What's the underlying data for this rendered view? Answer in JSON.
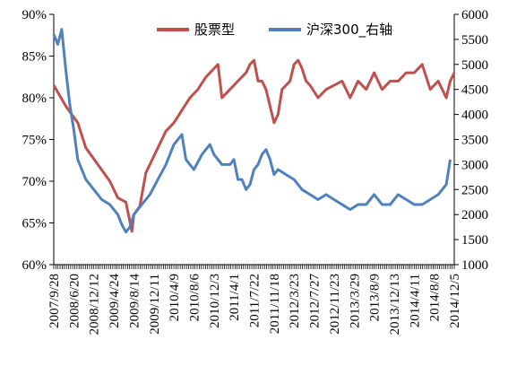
{
  "chart_data": {
    "type": "line",
    "title": "",
    "xlabel": "",
    "ylabel": "",
    "x_ticks": [
      "2007/9/28",
      "2008/6/20",
      "2008/12/12",
      "2009/4/24",
      "2009/8/14",
      "2009/12/11",
      "2010/4/9",
      "2010/8/6",
      "2010/12/3",
      "2011/4/1",
      "2011/7/22",
      "2011/11/18",
      "2012/3/23",
      "2012/7/27",
      "2012/11/23",
      "2013/3/29",
      "2013/8/9",
      "2013/12/13",
      "2014/4/11",
      "2014/8/8",
      "2014/12/5"
    ],
    "y_left_ticks": [
      "60%",
      "65%",
      "70%",
      "75%",
      "80%",
      "85%",
      "90%"
    ],
    "y_left_range": [
      60,
      90
    ],
    "y_right_ticks": [
      "1000",
      "1500",
      "2000",
      "2500",
      "3000",
      "3500",
      "4000",
      "4500",
      "5000",
      "5500",
      "6000"
    ],
    "y_right_range": [
      1000,
      6000
    ],
    "legend_position": "top-center",
    "grid": false,
    "series": [
      {
        "name": "股票型",
        "axis": "left",
        "color": "#c0504d",
        "values": [
          [
            0,
            81.5
          ],
          [
            3,
            79
          ],
          [
            6,
            77
          ],
          [
            8,
            74
          ],
          [
            11,
            72
          ],
          [
            14,
            70
          ],
          [
            16,
            68
          ],
          [
            18,
            67.5
          ],
          [
            19.5,
            64
          ],
          [
            20,
            66
          ],
          [
            21.5,
            67
          ],
          [
            23,
            71
          ],
          [
            26,
            74
          ],
          [
            28,
            76
          ],
          [
            30,
            77
          ],
          [
            32,
            78.5
          ],
          [
            34,
            80
          ],
          [
            36,
            81
          ],
          [
            38,
            82.5
          ],
          [
            40,
            83.5
          ],
          [
            41,
            84
          ],
          [
            42,
            80
          ],
          [
            44,
            81
          ],
          [
            46,
            82
          ],
          [
            48,
            83
          ],
          [
            49,
            84
          ],
          [
            50,
            84.5
          ],
          [
            51,
            82
          ],
          [
            52,
            82
          ],
          [
            53,
            81
          ],
          [
            54,
            79
          ],
          [
            55,
            77
          ],
          [
            56,
            78
          ],
          [
            57,
            81
          ],
          [
            58,
            81.5
          ],
          [
            59,
            82
          ],
          [
            60,
            84
          ],
          [
            61,
            84.5
          ],
          [
            62,
            83.5
          ],
          [
            63,
            82
          ],
          [
            64,
            81.5
          ],
          [
            66,
            80
          ],
          [
            68,
            81
          ],
          [
            70,
            81.5
          ],
          [
            72,
            82
          ],
          [
            74,
            80
          ],
          [
            76,
            82
          ],
          [
            78,
            81
          ],
          [
            80,
            83
          ],
          [
            82,
            81
          ],
          [
            84,
            82
          ],
          [
            86,
            82
          ],
          [
            88,
            83
          ],
          [
            90,
            83
          ],
          [
            92,
            84
          ],
          [
            94,
            81
          ],
          [
            96,
            82
          ],
          [
            98,
            80
          ],
          [
            99,
            82
          ],
          [
            100,
            83
          ]
        ]
      },
      {
        "name": "沪深300_右轴",
        "axis": "right",
        "color": "#4f81bd",
        "values": [
          [
            0,
            5600
          ],
          [
            1,
            5400
          ],
          [
            2,
            5700
          ],
          [
            3,
            4900
          ],
          [
            4,
            4200
          ],
          [
            5,
            3700
          ],
          [
            6,
            3100
          ],
          [
            8,
            2700
          ],
          [
            10,
            2500
          ],
          [
            12,
            2300
          ],
          [
            14,
            2200
          ],
          [
            16,
            2000
          ],
          [
            17,
            1800
          ],
          [
            18,
            1650
          ],
          [
            19,
            1750
          ],
          [
            20,
            2000
          ],
          [
            22,
            2200
          ],
          [
            24,
            2400
          ],
          [
            26,
            2700
          ],
          [
            28,
            3000
          ],
          [
            30,
            3400
          ],
          [
            31,
            3500
          ],
          [
            32,
            3600
          ],
          [
            33,
            3100
          ],
          [
            35,
            2900
          ],
          [
            37,
            3200
          ],
          [
            39,
            3400
          ],
          [
            40,
            3200
          ],
          [
            41,
            3100
          ],
          [
            42,
            3000
          ],
          [
            44,
            3000
          ],
          [
            45,
            3100
          ],
          [
            46,
            2700
          ],
          [
            47,
            2700
          ],
          [
            48,
            2500
          ],
          [
            49,
            2600
          ],
          [
            50,
            2900
          ],
          [
            51,
            3000
          ],
          [
            52,
            3200
          ],
          [
            53,
            3300
          ],
          [
            54,
            3100
          ],
          [
            55,
            2800
          ],
          [
            56,
            2900
          ],
          [
            58,
            2800
          ],
          [
            60,
            2700
          ],
          [
            62,
            2500
          ],
          [
            64,
            2400
          ],
          [
            66,
            2300
          ],
          [
            68,
            2400
          ],
          [
            70,
            2300
          ],
          [
            72,
            2200
          ],
          [
            74,
            2100
          ],
          [
            76,
            2200
          ],
          [
            78,
            2200
          ],
          [
            80,
            2400
          ],
          [
            81,
            2300
          ],
          [
            82,
            2200
          ],
          [
            84,
            2200
          ],
          [
            86,
            2400
          ],
          [
            88,
            2300
          ],
          [
            90,
            2200
          ],
          [
            92,
            2200
          ],
          [
            94,
            2300
          ],
          [
            96,
            2400
          ],
          [
            97,
            2500
          ],
          [
            98,
            2600
          ],
          [
            99,
            3100
          ]
        ]
      }
    ]
  }
}
